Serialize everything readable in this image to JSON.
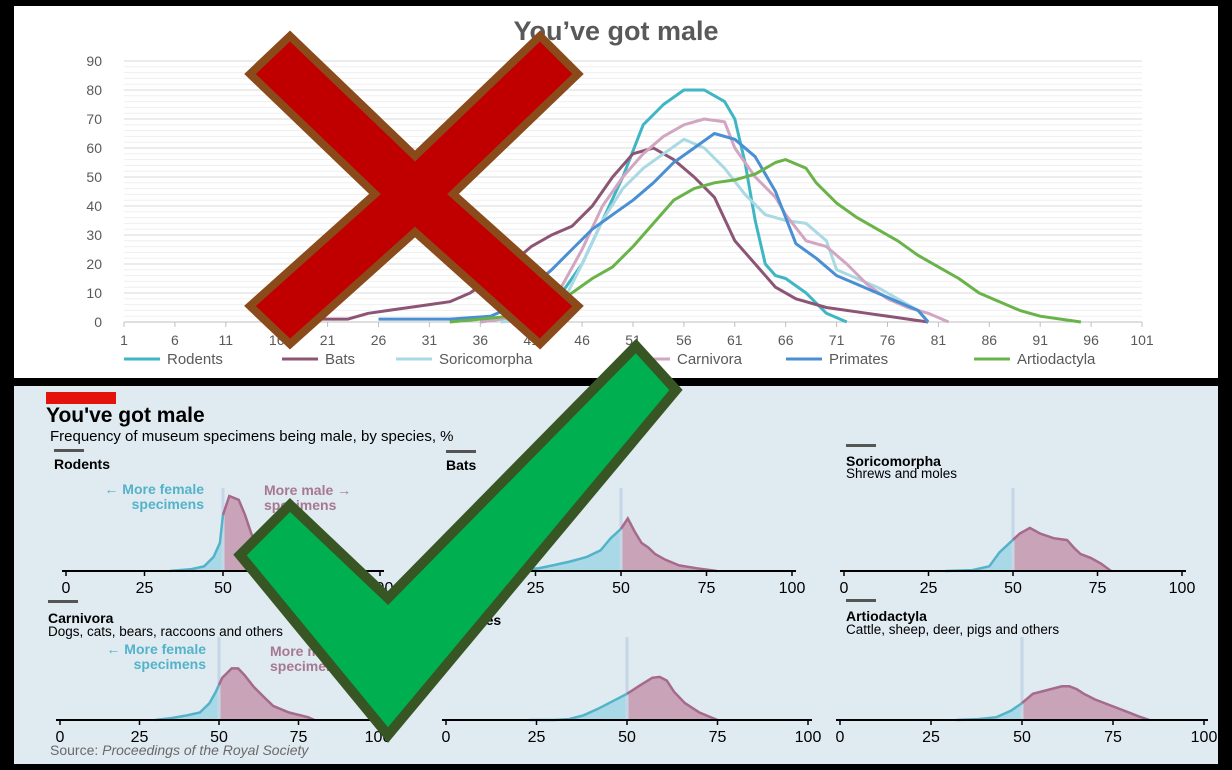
{
  "top_chart": {
    "title": "You’ve got male",
    "colors": {
      "Rodents": "#3fb6c4",
      "Bats": "#8d5575",
      "Soricomorpha": "#a9d9e3",
      "Carnivora": "#d2a6c2",
      "Primates": "#4a8fd3",
      "Artiodactyla": "#6ab34a"
    },
    "marker": {
      "type": "cross",
      "fill": "#c00000",
      "outline": "#8a4a1a"
    }
  },
  "bottom_chart": {
    "title": "You've got male",
    "subtitle": "Frequency of museum specimens being male, by species, %",
    "source_label": "Source:",
    "source_text": "Proceedings of the Royal Society",
    "accent": "#e3120b",
    "female_color": "#a9d9e6",
    "female_line": "#52b3c9",
    "male_color": "#c9a4b9",
    "male_line": "#a56a8c",
    "annotations": {
      "female_line1": "← More female",
      "female_line2": "specimens",
      "male_line1": "More male →",
      "male_line2": "specimens"
    },
    "marker": {
      "type": "check",
      "fill": "#00b050",
      "outline": "#375623"
    }
  },
  "chart_data": [
    {
      "type": "line",
      "title": "You’ve got male",
      "xlabel": "",
      "ylabel": "",
      "ylim": [
        0,
        90
      ],
      "xlim": [
        1,
        101
      ],
      "x_ticks": [
        1,
        6,
        11,
        16,
        21,
        26,
        31,
        36,
        41,
        46,
        51,
        56,
        61,
        66,
        71,
        76,
        81,
        86,
        91,
        96,
        101
      ],
      "y_ticks": [
        0,
        10,
        20,
        30,
        40,
        50,
        60,
        70,
        80,
        90
      ],
      "grid": true,
      "legend": "bottom",
      "series": [
        {
          "name": "Rodents",
          "points": [
            [
              36,
              0
            ],
            [
              38,
              1
            ],
            [
              40,
              2
            ],
            [
              42,
              5
            ],
            [
              44,
              10
            ],
            [
              46,
              20
            ],
            [
              48,
              35
            ],
            [
              50,
              50
            ],
            [
              52,
              68
            ],
            [
              54,
              75
            ],
            [
              56,
              80
            ],
            [
              58,
              80
            ],
            [
              60,
              76
            ],
            [
              61,
              70
            ],
            [
              62,
              55
            ],
            [
              63,
              35
            ],
            [
              64,
              20
            ],
            [
              65,
              16
            ],
            [
              66,
              15
            ],
            [
              68,
              10
            ],
            [
              70,
              3
            ],
            [
              72,
              0
            ]
          ]
        },
        {
          "name": "Bats",
          "points": [
            [
              16,
              1
            ],
            [
              23,
              1
            ],
            [
              25,
              3
            ],
            [
              27,
              4
            ],
            [
              29,
              5
            ],
            [
              31,
              6
            ],
            [
              33,
              7
            ],
            [
              35,
              10
            ],
            [
              37,
              15
            ],
            [
              39,
              20
            ],
            [
              41,
              26
            ],
            [
              43,
              30
            ],
            [
              45,
              33
            ],
            [
              47,
              40
            ],
            [
              49,
              50
            ],
            [
              51,
              58
            ],
            [
              53,
              60
            ],
            [
              55,
              56
            ],
            [
              57,
              50
            ],
            [
              59,
              43
            ],
            [
              61,
              28
            ],
            [
              63,
              20
            ],
            [
              65,
              12
            ],
            [
              67,
              8
            ],
            [
              70,
              5
            ],
            [
              74,
              3
            ],
            [
              78,
              1
            ],
            [
              80,
              0
            ]
          ]
        },
        {
          "name": "Soricomorpha",
          "points": [
            [
              38,
              0
            ],
            [
              42,
              1
            ],
            [
              44,
              6
            ],
            [
              46,
              20
            ],
            [
              48,
              35
            ],
            [
              50,
              46
            ],
            [
              52,
              53
            ],
            [
              54,
              58
            ],
            [
              56,
              63
            ],
            [
              58,
              60
            ],
            [
              60,
              53
            ],
            [
              62,
              44
            ],
            [
              64,
              37
            ],
            [
              66,
              35
            ],
            [
              68,
              34
            ],
            [
              70,
              28
            ],
            [
              71,
              18
            ],
            [
              73,
              15
            ],
            [
              75,
              12
            ],
            [
              77,
              8
            ],
            [
              79,
              4
            ],
            [
              80,
              0
            ]
          ]
        },
        {
          "name": "Carnivora",
          "points": [
            [
              36,
              0
            ],
            [
              40,
              2
            ],
            [
              43,
              6
            ],
            [
              46,
              25
            ],
            [
              48,
              40
            ],
            [
              50,
              50
            ],
            [
              52,
              58
            ],
            [
              54,
              64
            ],
            [
              56,
              68
            ],
            [
              58,
              70
            ],
            [
              60,
              69
            ],
            [
              61,
              60
            ],
            [
              63,
              50
            ],
            [
              65,
              43
            ],
            [
              66,
              37
            ],
            [
              68,
              28
            ],
            [
              70,
              26
            ],
            [
              72,
              20
            ],
            [
              74,
              13
            ],
            [
              76,
              8
            ],
            [
              78,
              5
            ],
            [
              80,
              3
            ],
            [
              82,
              0
            ]
          ]
        },
        {
          "name": "Primates",
          "points": [
            [
              26,
              1
            ],
            [
              33,
              1
            ],
            [
              37,
              2
            ],
            [
              39,
              5
            ],
            [
              41,
              12
            ],
            [
              43,
              18
            ],
            [
              45,
              25
            ],
            [
              47,
              32
            ],
            [
              49,
              37
            ],
            [
              51,
              42
            ],
            [
              53,
              48
            ],
            [
              55,
              55
            ],
            [
              57,
              60
            ],
            [
              59,
              65
            ],
            [
              61,
              63
            ],
            [
              63,
              57
            ],
            [
              65,
              45
            ],
            [
              67,
              27
            ],
            [
              69,
              22
            ],
            [
              71,
              16
            ],
            [
              73,
              13
            ],
            [
              75,
              10
            ],
            [
              77,
              7
            ],
            [
              79,
              4
            ],
            [
              80,
              0
            ]
          ]
        },
        {
          "name": "Artiodactyla",
          "points": [
            [
              33,
              0
            ],
            [
              36,
              1
            ],
            [
              39,
              2
            ],
            [
              41,
              4
            ],
            [
              43,
              6
            ],
            [
              45,
              10
            ],
            [
              47,
              15
            ],
            [
              49,
              19
            ],
            [
              51,
              26
            ],
            [
              53,
              34
            ],
            [
              55,
              42
            ],
            [
              57,
              46
            ],
            [
              59,
              48
            ],
            [
              61,
              49
            ],
            [
              63,
              51
            ],
            [
              65,
              55
            ],
            [
              66,
              56
            ],
            [
              68,
              53
            ],
            [
              69,
              48
            ],
            [
              71,
              41
            ],
            [
              73,
              36
            ],
            [
              75,
              32
            ],
            [
              77,
              28
            ],
            [
              79,
              23
            ],
            [
              81,
              19
            ],
            [
              83,
              15
            ],
            [
              85,
              10
            ],
            [
              87,
              7
            ],
            [
              89,
              4
            ],
            [
              91,
              2
            ],
            [
              93,
              1
            ],
            [
              95,
              0
            ]
          ]
        }
      ]
    },
    {
      "type": "area",
      "title": "You've got male",
      "subtitle": "Frequency of museum specimens being male, by species, %",
      "x_ticks": [
        0,
        25,
        50,
        75,
        100
      ],
      "xlim": [
        0,
        100
      ],
      "reference_line": 50,
      "panels": [
        {
          "name": "Rodents",
          "desc": "",
          "points": [
            [
              33,
              0
            ],
            [
              40,
              2
            ],
            [
              44,
              5
            ],
            [
              47,
              15
            ],
            [
              49,
              30
            ],
            [
              50,
              60
            ],
            [
              52,
              80
            ],
            [
              55,
              76
            ],
            [
              57,
              60
            ],
            [
              59,
              40
            ],
            [
              61,
              25
            ],
            [
              63,
              12
            ],
            [
              65,
              6
            ],
            [
              67,
              2
            ],
            [
              70,
              0
            ]
          ]
        },
        {
          "name": "Bats",
          "desc": "",
          "points": [
            [
              14,
              0
            ],
            [
              20,
              1
            ],
            [
              26,
              3
            ],
            [
              30,
              6
            ],
            [
              35,
              10
            ],
            [
              40,
              15
            ],
            [
              44,
              22
            ],
            [
              47,
              35
            ],
            [
              50,
              45
            ],
            [
              52,
              56
            ],
            [
              54,
              42
            ],
            [
              56,
              30
            ],
            [
              58,
              25
            ],
            [
              60,
              18
            ],
            [
              63,
              12
            ],
            [
              67,
              6
            ],
            [
              72,
              3
            ],
            [
              78,
              0
            ]
          ]
        },
        {
          "name": "Soricomorpha",
          "desc": "Shrews and moles",
          "points": [
            [
              30,
              0
            ],
            [
              38,
              1
            ],
            [
              43,
              5
            ],
            [
              46,
              20
            ],
            [
              49,
              30
            ],
            [
              52,
              40
            ],
            [
              55,
              46
            ],
            [
              58,
              40
            ],
            [
              62,
              35
            ],
            [
              66,
              33
            ],
            [
              68,
              25
            ],
            [
              70,
              18
            ],
            [
              73,
              14
            ],
            [
              76,
              8
            ],
            [
              79,
              0
            ]
          ]
        },
        {
          "name": "Carnivora",
          "desc": "Dogs, cats, bears, raccoons and others",
          "points": [
            [
              30,
              0
            ],
            [
              35,
              2
            ],
            [
              40,
              5
            ],
            [
              44,
              8
            ],
            [
              47,
              18
            ],
            [
              49,
              30
            ],
            [
              51,
              45
            ],
            [
              54,
              55
            ],
            [
              56,
              55
            ],
            [
              58,
              48
            ],
            [
              61,
              35
            ],
            [
              64,
              25
            ],
            [
              67,
              15
            ],
            [
              72,
              8
            ],
            [
              78,
              3
            ],
            [
              80,
              0
            ]
          ]
        },
        {
          "name": "Primates",
          "desc": "",
          "points": [
            [
              23,
              0
            ],
            [
              30,
              0
            ],
            [
              34,
              1
            ],
            [
              38,
              5
            ],
            [
              42,
              12
            ],
            [
              46,
              20
            ],
            [
              50,
              28
            ],
            [
              54,
              38
            ],
            [
              57,
              45
            ],
            [
              59,
              46
            ],
            [
              61,
              42
            ],
            [
              63,
              30
            ],
            [
              66,
              18
            ],
            [
              70,
              8
            ],
            [
              75,
              0
            ]
          ]
        },
        {
          "name": "Artiodactyla",
          "desc": "Cattle, sheep, deer, pigs and others",
          "points": [
            [
              32,
              0
            ],
            [
              38,
              1
            ],
            [
              43,
              3
            ],
            [
              47,
              10
            ],
            [
              50,
              18
            ],
            [
              53,
              28
            ],
            [
              57,
              32
            ],
            [
              61,
              36
            ],
            [
              63,
              36
            ],
            [
              65,
              33
            ],
            [
              67,
              28
            ],
            [
              70,
              22
            ],
            [
              74,
              16
            ],
            [
              78,
              10
            ],
            [
              82,
              4
            ],
            [
              85,
              0
            ]
          ]
        }
      ]
    }
  ]
}
